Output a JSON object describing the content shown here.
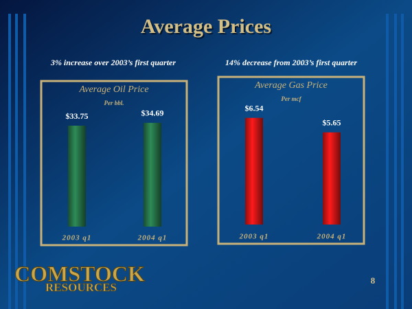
{
  "slide": {
    "title": "Average Prices",
    "logo": {
      "line1": "COMSTOCK",
      "line2": "RESOURCES"
    },
    "page_number": "8"
  },
  "chart_data": [
    {
      "type": "bar",
      "annotation": "3% increase over 2003’s first quarter",
      "title": "Average Oil Price",
      "subtitle": "Per bbl.",
      "categories": [
        "2003 q1",
        "2004 q1"
      ],
      "values": [
        33.75,
        34.69
      ],
      "value_labels": [
        "$33.75",
        "$34.69"
      ],
      "color": "#2e8b57",
      "ylim": [
        0,
        45
      ]
    },
    {
      "type": "bar",
      "annotation": "14% decrease from 2003’s first quarter",
      "title": "Average Gas Price",
      "subtitle": "Per mcf",
      "categories": [
        "2003 q1",
        "2004 q1"
      ],
      "values": [
        6.54,
        5.65
      ],
      "value_labels": [
        "$6.54",
        "$5.65"
      ],
      "color": "#ff1a1a",
      "ylim": [
        0,
        8
      ]
    }
  ]
}
